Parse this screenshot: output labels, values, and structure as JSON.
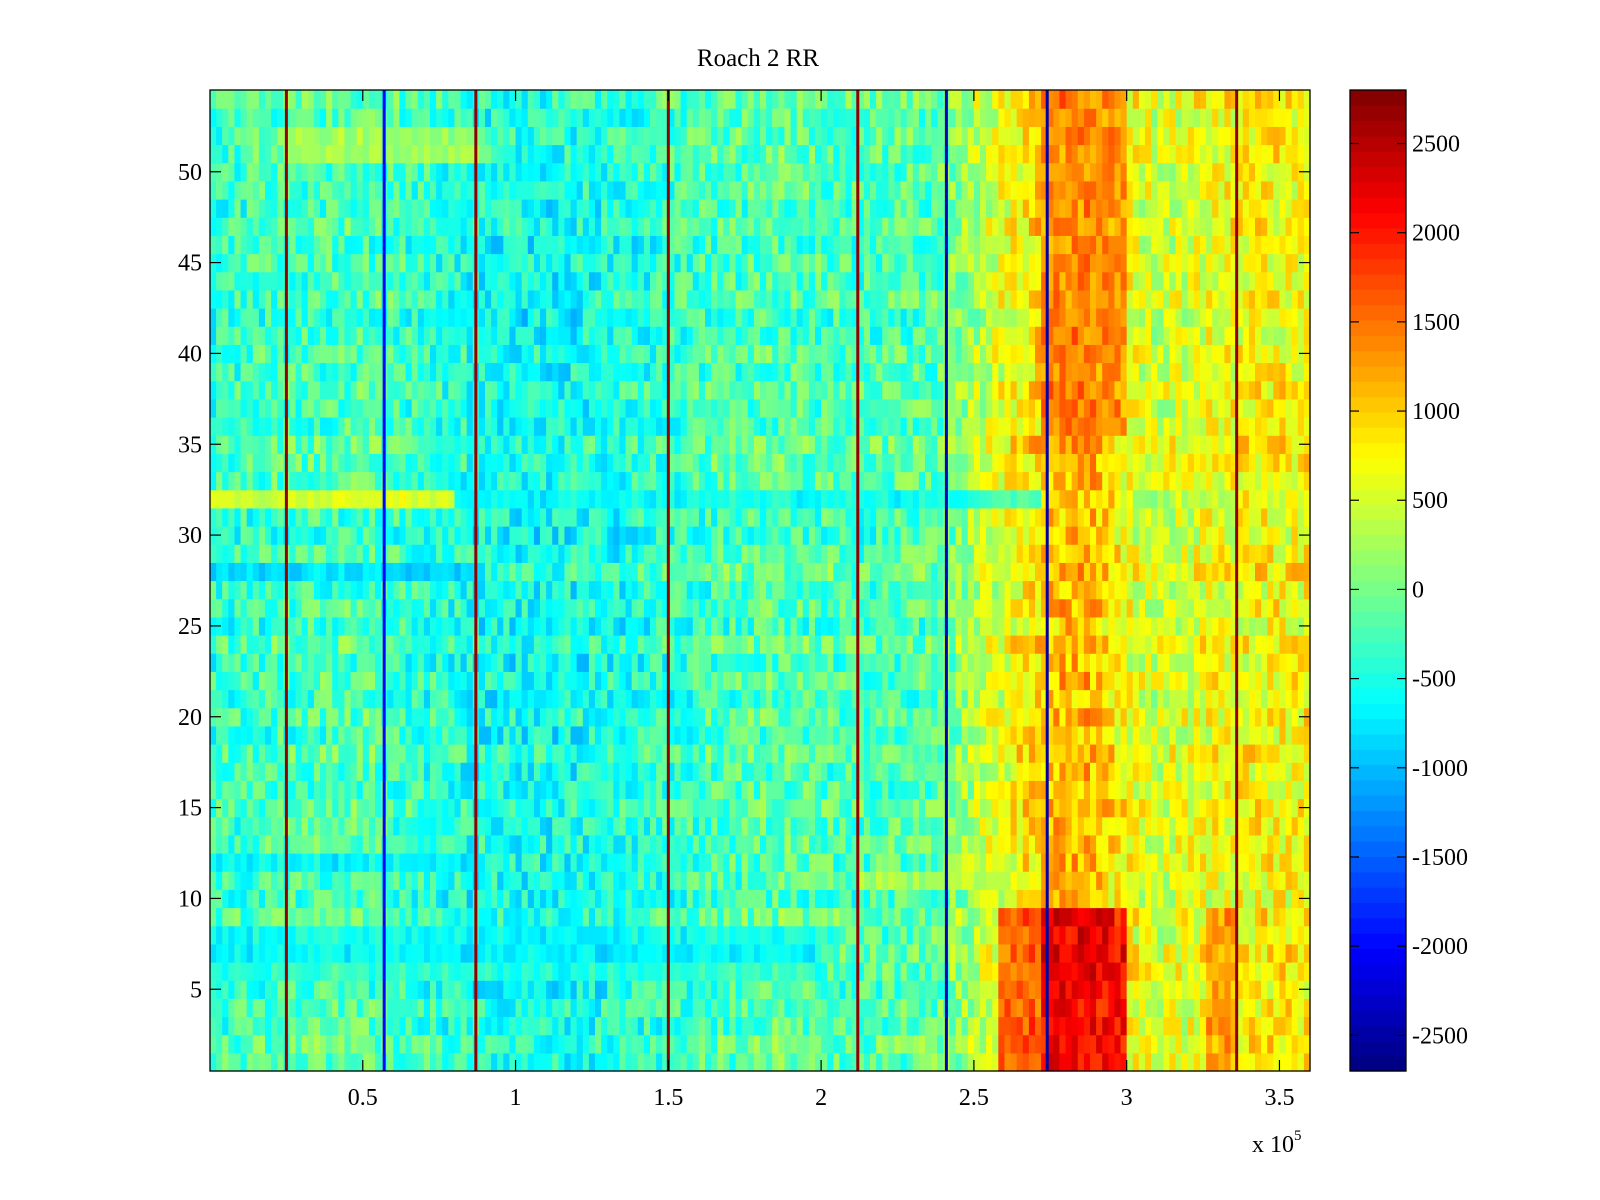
{
  "chart_data": {
    "type": "heatmap",
    "title": "Roach 2 RR",
    "xlabel": "",
    "ylabel": "",
    "x_multiplier": "x 10",
    "x_exponent": "5",
    "xlim": [
      0,
      360000
    ],
    "ylim": [
      0.5,
      54.5
    ],
    "rows": 54,
    "x_ticks": [
      {
        "value": 50000,
        "label": "0.5"
      },
      {
        "value": 100000,
        "label": "1"
      },
      {
        "value": 150000,
        "label": "1.5"
      },
      {
        "value": 200000,
        "label": "2"
      },
      {
        "value": 250000,
        "label": "2.5"
      },
      {
        "value": 300000,
        "label": "3"
      },
      {
        "value": 350000,
        "label": "3.5"
      }
    ],
    "y_ticks": [
      {
        "value": 5,
        "label": "5"
      },
      {
        "value": 10,
        "label": "10"
      },
      {
        "value": 15,
        "label": "15"
      },
      {
        "value": 20,
        "label": "20"
      },
      {
        "value": 25,
        "label": "25"
      },
      {
        "value": 30,
        "label": "30"
      },
      {
        "value": 35,
        "label": "35"
      },
      {
        "value": 40,
        "label": "40"
      },
      {
        "value": 45,
        "label": "45"
      },
      {
        "value": 50,
        "label": "50"
      }
    ],
    "colorbar": {
      "colormap": "jet",
      "clim": [
        -2700,
        2800
      ],
      "ticks": [
        {
          "value": 2500,
          "label": "2500"
        },
        {
          "value": 2000,
          "label": "2000"
        },
        {
          "value": 1500,
          "label": "1500"
        },
        {
          "value": 1000,
          "label": "1000"
        },
        {
          "value": 500,
          "label": "500"
        },
        {
          "value": 0,
          "label": "0"
        },
        {
          "value": -500,
          "label": "-500"
        },
        {
          "value": -1000,
          "label": "-1000"
        },
        {
          "value": -1500,
          "label": "-1500"
        },
        {
          "value": -2000,
          "label": "-2000"
        },
        {
          "value": -2500,
          "label": "-2500"
        }
      ]
    },
    "column_profile": [
      {
        "x": 0,
        "value": -350
      },
      {
        "x": 25000,
        "value": -250
      },
      {
        "x": 50000,
        "value": -200
      },
      {
        "x": 62500,
        "value": -300
      },
      {
        "x": 87500,
        "value": -500
      },
      {
        "x": 112500,
        "value": -550
      },
      {
        "x": 137500,
        "value": -450
      },
      {
        "x": 162500,
        "value": -250
      },
      {
        "x": 187500,
        "value": -150
      },
      {
        "x": 212500,
        "value": -250
      },
      {
        "x": 237500,
        "value": -150
      },
      {
        "x": 250000,
        "value": 300
      },
      {
        "x": 262500,
        "value": 700
      },
      {
        "x": 275000,
        "value": 1100
      },
      {
        "x": 287500,
        "value": 1200
      },
      {
        "x": 300000,
        "value": 700
      },
      {
        "x": 310000,
        "value": 450
      },
      {
        "x": 325000,
        "value": 650
      },
      {
        "x": 340000,
        "value": 750
      },
      {
        "x": 360000,
        "value": 750
      }
    ],
    "hot_bands": [
      {
        "x_start": 272000,
        "x_end": 300000,
        "rows_start": 1,
        "rows_end": 9,
        "value": 2600
      },
      {
        "x_start": 258000,
        "x_end": 272000,
        "rows_start": 1,
        "rows_end": 9,
        "value": 1900
      },
      {
        "x_start": 272000,
        "x_end": 300000,
        "rows_start": 36,
        "rows_end": 54,
        "value": 1500
      },
      {
        "x_start": 326000,
        "x_end": 335000,
        "rows_start": 1,
        "rows_end": 9,
        "value": 1500
      }
    ],
    "row_offsets": [
      {
        "row": 32,
        "x_start": 0,
        "x_end": 80000,
        "value": 1000
      },
      {
        "row": 32,
        "x_start": 80000,
        "x_end": 272000,
        "value": -700
      },
      {
        "row": 28,
        "x_start": 0,
        "x_end": 90000,
        "value": -1100
      },
      {
        "row": 12,
        "x_start": 0,
        "x_end": 90000,
        "value": -900
      },
      {
        "row": 7,
        "x_start": 0,
        "x_end": 200000,
        "value": -900
      },
      {
        "row": 8,
        "x_start": 0,
        "x_end": 200000,
        "value": -700
      },
      {
        "row": 6,
        "x_start": 0,
        "x_end": 200000,
        "value": -500
      },
      {
        "row": 51,
        "x_start": 25000,
        "x_end": 90000,
        "value": 500
      },
      {
        "row": 52,
        "x_start": 25000,
        "x_end": 90000,
        "value": 400
      },
      {
        "row": 11,
        "x_start": 212000,
        "x_end": 272000,
        "value": 500
      }
    ],
    "vertical_lines": [
      {
        "x": 25000,
        "value": 2700
      },
      {
        "x": 87000,
        "value": 2700
      },
      {
        "x": 150000,
        "value": 2700
      },
      {
        "x": 212000,
        "value": 2700
      },
      {
        "x": 241000,
        "value": -2400
      },
      {
        "x": 57000,
        "value": -2000
      },
      {
        "x": 274000,
        "value": -2500
      },
      {
        "x": 336000,
        "value": 2700
      }
    ]
  }
}
